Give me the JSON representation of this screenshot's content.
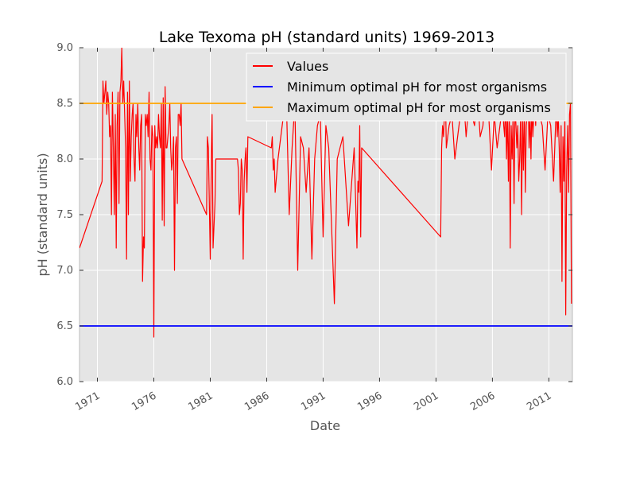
{
  "chart_data": {
    "type": "line",
    "title": "Lake Texoma pH (standard units) 1969-2013",
    "xlabel": "Date",
    "ylabel": "pH (standard units)",
    "xlim": [
      "1969-06-01",
      "2013-02-01"
    ],
    "ylim": [
      6.0,
      9.0
    ],
    "y_ticks": [
      "6.0",
      "6.5",
      "7.0",
      "7.5",
      "8.0",
      "8.5",
      "9.0"
    ],
    "x_ticks": [
      {
        "label": "1971",
        "date": "1971-01-01"
      },
      {
        "label": "1976",
        "date": "1976-01-01"
      },
      {
        "label": "1981",
        "date": "1981-01-01"
      },
      {
        "label": "1986",
        "date": "1986-01-01"
      },
      {
        "label": "1991",
        "date": "1991-01-01"
      },
      {
        "label": "1996",
        "date": "1996-01-01"
      },
      {
        "label": "2001",
        "date": "2001-01-01"
      },
      {
        "label": "2006",
        "date": "2006-01-01"
      },
      {
        "label": "2011",
        "date": "2011-01-01"
      }
    ],
    "grid": true,
    "background": "#e5e5e5",
    "legend_position": "top-right",
    "series": [
      {
        "name": "Values",
        "color": "#ff0000",
        "x": [
          "1969-06-01",
          "1971-06-01",
          "1971-07-01",
          "1971-08-01",
          "1971-09-01",
          "1971-10-01",
          "1971-11-01",
          "1971-12-01",
          "1972-01-01",
          "1972-02-01",
          "1972-03-01",
          "1972-04-01",
          "1972-05-01",
          "1972-06-01",
          "1972-07-01",
          "1972-08-01",
          "1972-09-01",
          "1972-10-01",
          "1972-11-01",
          "1972-12-01",
          "1973-01-01",
          "1973-02-01",
          "1973-03-01",
          "1973-04-01",
          "1973-05-01",
          "1973-06-01",
          "1973-07-01",
          "1973-08-01",
          "1973-09-01",
          "1973-10-01",
          "1973-11-01",
          "1973-12-01",
          "1974-01-01",
          "1974-02-01",
          "1974-03-01",
          "1974-04-01",
          "1974-05-01",
          "1974-06-01",
          "1974-07-01",
          "1974-08-01",
          "1974-09-01",
          "1974-10-01",
          "1974-11-01",
          "1974-12-01",
          "1975-01-01",
          "1975-02-01",
          "1975-03-01",
          "1975-04-01",
          "1975-05-01",
          "1975-06-01",
          "1975-07-01",
          "1975-08-01",
          "1975-09-01",
          "1975-10-01",
          "1975-11-01",
          "1975-12-01",
          "1976-01-01",
          "1976-02-01",
          "1976-03-01",
          "1976-04-01",
          "1976-05-01",
          "1976-06-01",
          "1976-07-01",
          "1976-08-01",
          "1976-09-01",
          "1976-10-01",
          "1976-11-01",
          "1976-12-01",
          "1977-01-01",
          "1977-02-01",
          "1977-03-01",
          "1977-04-01",
          "1977-05-01",
          "1977-06-01",
          "1977-07-01",
          "1977-08-01",
          "1977-09-01",
          "1977-10-01",
          "1977-11-01",
          "1977-12-01",
          "1978-01-01",
          "1978-02-01",
          "1978-03-01",
          "1978-04-01",
          "1978-05-01",
          "1978-06-01",
          "1978-07-01",
          "1980-09-01",
          "1980-10-01",
          "1980-11-01",
          "1981-01-01",
          "1981-02-01",
          "1981-03-01",
          "1981-04-01",
          "1981-05-01",
          "1981-06-01",
          "1981-07-01",
          "1983-06-01",
          "1983-07-01",
          "1983-08-01",
          "1983-09-01",
          "1983-10-01",
          "1983-11-01",
          "1983-12-01",
          "1984-01-01",
          "1984-02-01",
          "1984-03-01",
          "1984-04-01",
          "1984-05-01",
          "1986-06-01",
          "1986-07-01",
          "1986-08-01",
          "1986-09-01",
          "1986-10-01",
          "1987-01-01",
          "1987-04-01",
          "1987-07-01",
          "1987-10-01",
          "1988-01-01",
          "1988-04-01",
          "1988-07-01",
          "1988-10-01",
          "1989-01-01",
          "1989-04-01",
          "1989-07-01",
          "1989-10-01",
          "1990-01-01",
          "1990-04-01",
          "1990-07-01",
          "1990-10-01",
          "1991-01-01",
          "1991-04-01",
          "1991-07-01",
          "1992-01-01",
          "1992-04-01",
          "1992-07-01",
          "1992-10-01",
          "1993-04-01",
          "1993-10-01",
          "1994-01-01",
          "1994-02-01",
          "1994-03-01",
          "1994-04-01",
          "1994-05-01",
          "1994-06-01",
          "2001-06-01",
          "2001-07-01",
          "2001-08-01",
          "2001-09-01",
          "2001-10-01",
          "2001-11-01",
          "2001-12-01",
          "2002-03-01",
          "2002-06-01",
          "2002-09-01",
          "2002-12-01",
          "2003-03-01",
          "2003-06-01",
          "2003-09-01",
          "2003-12-01",
          "2004-03-01",
          "2004-06-01",
          "2004-09-01",
          "2004-12-01",
          "2005-03-01",
          "2005-06-01",
          "2005-09-01",
          "2005-12-01",
          "2006-03-01",
          "2006-06-01",
          "2006-09-01",
          "2006-12-01",
          "2007-01-01",
          "2007-02-01",
          "2007-03-01",
          "2007-04-01",
          "2007-05-01",
          "2007-06-01",
          "2007-07-01",
          "2007-08-01",
          "2007-09-01",
          "2007-10-01",
          "2007-11-01",
          "2007-12-01",
          "2008-01-01",
          "2008-02-01",
          "2008-03-01",
          "2008-04-01",
          "2008-05-01",
          "2008-06-01",
          "2008-07-01",
          "2008-08-01",
          "2008-09-01",
          "2008-10-01",
          "2008-11-01",
          "2008-12-01",
          "2009-01-01",
          "2009-02-01",
          "2009-03-01",
          "2009-04-01",
          "2009-05-01",
          "2009-06-01",
          "2009-07-01",
          "2009-08-01",
          "2009-09-01",
          "2009-10-01",
          "2009-11-01",
          "2009-12-01",
          "2010-03-01",
          "2010-06-01",
          "2010-09-01",
          "2010-12-01",
          "2011-03-01",
          "2011-06-01",
          "2011-09-01",
          "2011-10-01",
          "2011-11-01",
          "2011-12-01",
          "2012-01-01",
          "2012-02-01",
          "2012-03-01",
          "2012-04-01",
          "2012-05-01",
          "2012-06-01",
          "2012-07-01",
          "2012-08-01",
          "2012-09-01",
          "2012-10-01",
          "2012-11-01",
          "2012-12-01",
          "2013-01-01"
        ],
        "y": [
          7.2,
          7.8,
          8.7,
          8.5,
          8.6,
          8.7,
          8.4,
          8.6,
          8.5,
          8.2,
          8.3,
          7.5,
          8.6,
          8.1,
          7.5,
          8.4,
          7.2,
          8.3,
          8.6,
          7.6,
          8.6,
          8.7,
          9.0,
          8.5,
          8.7,
          8.4,
          8.1,
          7.1,
          8.6,
          7.5,
          8.7,
          7.8,
          8.2,
          8.4,
          8.5,
          8.0,
          7.8,
          8.4,
          8.2,
          8.5,
          8.1,
          7.9,
          8.3,
          8.4,
          6.9,
          7.3,
          7.2,
          8.4,
          8.3,
          8.4,
          8.2,
          8.6,
          8.0,
          7.9,
          8.3,
          8.2,
          6.4,
          8.3,
          8.1,
          8.2,
          8.1,
          8.4,
          8.2,
          8.1,
          8.5,
          7.45,
          8.55,
          7.4,
          8.65,
          8.1,
          8.1,
          8.2,
          8.3,
          8.5,
          8.1,
          7.9,
          8.0,
          8.2,
          7.0,
          8.1,
          8.2,
          7.6,
          8.4,
          8.4,
          8.3,
          8.5,
          8.0,
          7.5,
          8.2,
          8.1,
          7.1,
          8.0,
          8.4,
          7.2,
          7.4,
          7.6,
          8.0,
          8.0,
          7.9,
          7.5,
          7.6,
          8.0,
          7.9,
          7.1,
          7.8,
          8.0,
          8.1,
          7.7,
          8.2,
          8.1,
          8.2,
          7.9,
          8.0,
          7.7,
          8.0,
          8.2,
          8.4,
          8.5,
          7.5,
          8.1,
          8.5,
          7.0,
          8.2,
          8.1,
          7.7,
          8.1,
          7.1,
          8.0,
          8.3,
          8.4,
          7.3,
          8.3,
          8.1,
          6.7,
          8.0,
          8.1,
          8.2,
          7.4,
          8.1,
          7.2,
          7.8,
          7.7,
          8.3,
          7.3,
          8.1,
          7.3,
          8.1,
          8.3,
          8.2,
          8.4,
          8.6,
          8.1,
          8.3,
          8.4,
          8.0,
          8.2,
          8.4,
          8.6,
          8.2,
          8.5,
          8.4,
          8.3,
          8.6,
          8.2,
          8.3,
          8.7,
          8.4,
          7.9,
          8.4,
          8.1,
          8.3,
          8.5,
          8.3,
          8.2,
          8.6,
          8.0,
          8.4,
          7.8,
          8.5,
          7.2,
          8.3,
          8.0,
          8.4,
          7.6,
          8.5,
          8.3,
          8.1,
          8.3,
          7.8,
          8.0,
          8.4,
          7.5,
          8.4,
          7.9,
          8.5,
          7.7,
          8.3,
          8.4,
          8.6,
          8.1,
          8.4,
          8.0,
          8.5,
          8.2,
          8.4,
          8.5,
          8.3,
          8.6,
          8.4,
          8.3,
          7.9,
          8.4,
          8.3,
          7.8,
          8.5,
          8.2,
          8.4,
          8.1,
          7.7,
          8.3,
          6.9,
          8.2,
          7.8,
          8.4,
          6.6,
          7.9,
          8.3,
          7.7,
          8.4,
          8.5,
          6.7
        ]
      },
      {
        "name": "Minimum optimal pH for most organisms",
        "color": "#0000ff",
        "x": [
          "1969-06-01",
          "2013-02-01"
        ],
        "y": [
          6.5,
          6.5
        ]
      },
      {
        "name": "Maximum optimal pH for most organisms",
        "color": "#ffa500",
        "x": [
          "1969-06-01",
          "2013-02-01"
        ],
        "y": [
          8.5,
          8.5
        ]
      }
    ]
  }
}
